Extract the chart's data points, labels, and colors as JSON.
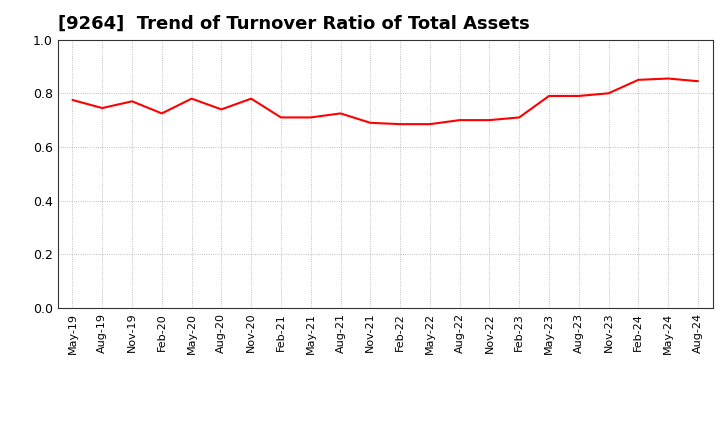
{
  "title": "[9264]  Trend of Turnover Ratio of Total Assets",
  "line_color": "#FF0000",
  "background_color": "#FFFFFF",
  "grid_color": "#888888",
  "ylim": [
    0.0,
    1.0
  ],
  "yticks": [
    0.0,
    0.2,
    0.4,
    0.6,
    0.8,
    1.0
  ],
  "x_labels": [
    "May-19",
    "Aug-19",
    "Nov-19",
    "Feb-20",
    "May-20",
    "Aug-20",
    "Nov-20",
    "Feb-21",
    "May-21",
    "Aug-21",
    "Nov-21",
    "Feb-22",
    "May-22",
    "Aug-22",
    "Nov-22",
    "Feb-23",
    "May-23",
    "Aug-23",
    "Nov-23",
    "Feb-24",
    "May-24",
    "Aug-24"
  ],
  "values": [
    0.775,
    0.745,
    0.77,
    0.725,
    0.78,
    0.74,
    0.78,
    0.71,
    0.71,
    0.725,
    0.69,
    0.685,
    0.685,
    0.7,
    0.7,
    0.71,
    0.79,
    0.79,
    0.8,
    0.85,
    0.855,
    0.845
  ],
  "title_fontsize": 13,
  "tick_fontsize": 8,
  "ytick_fontsize": 9,
  "line_width": 1.5
}
